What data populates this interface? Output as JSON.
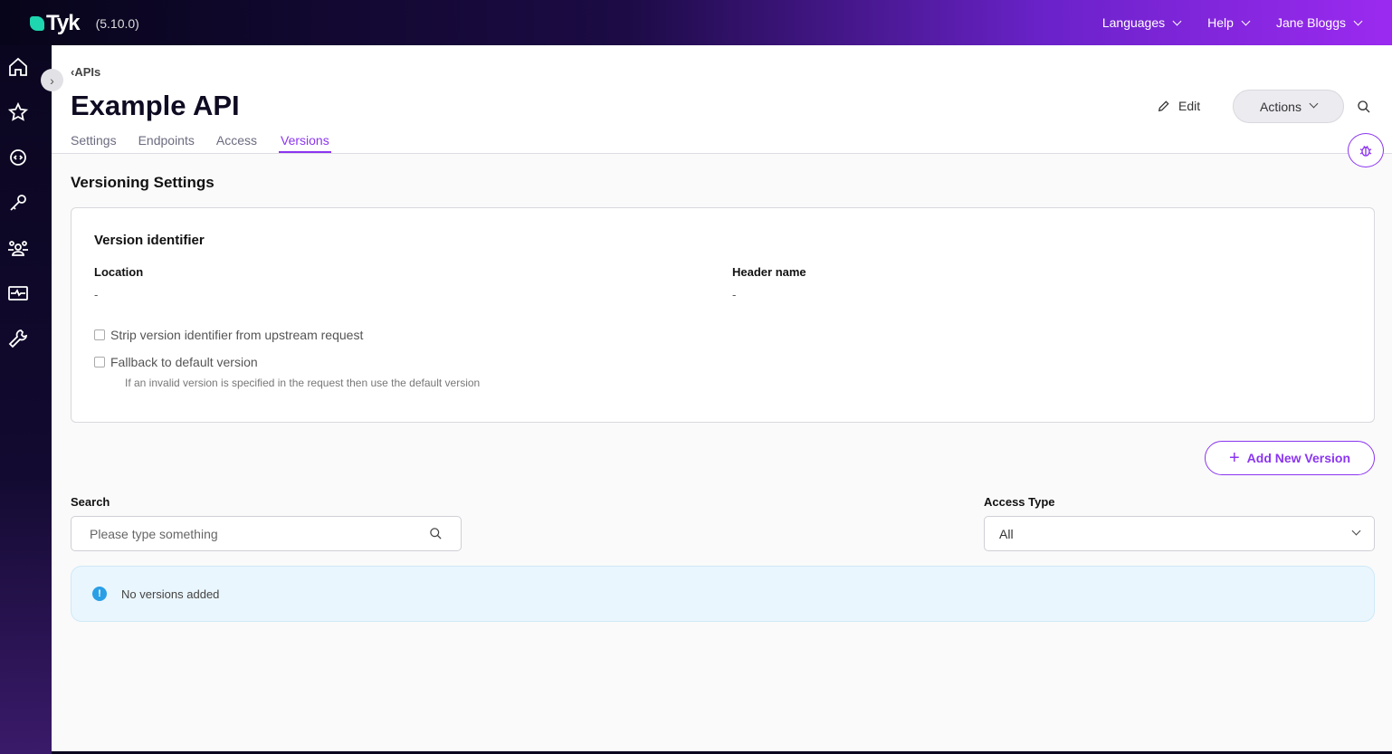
{
  "app": {
    "logo_text": "Tyk",
    "version": "(5.10.0)"
  },
  "topnav": {
    "languages": "Languages",
    "help": "Help",
    "user": "Jane Bloggs"
  },
  "sidebar": {
    "items": [
      "home-icon",
      "star-icon",
      "api-gear-icon",
      "key-icon",
      "users-icon",
      "monitor-icon",
      "wrench-icon"
    ]
  },
  "header": {
    "breadcrumb": "APIs",
    "title": "Example API",
    "edit": "Edit",
    "actions": "Actions",
    "tabs": [
      {
        "label": "Settings"
      },
      {
        "label": "Endpoints"
      },
      {
        "label": "Access"
      },
      {
        "label": "Versions",
        "active": true
      }
    ]
  },
  "versioning": {
    "title": "Versioning Settings",
    "card_title": "Version identifier",
    "location_label": "Location",
    "location_value": "-",
    "header_label": "Header name",
    "header_value": "-",
    "strip_label": "Strip version identifier from upstream request",
    "strip_checked": false,
    "fallback_label": "Fallback to default version",
    "fallback_checked": false,
    "fallback_hint": "If an invalid version is specified in the request then use the default version"
  },
  "add_version": "Add New Version",
  "filters": {
    "search_label": "Search",
    "search_placeholder": "Please type something",
    "access_label": "Access Type",
    "access_value": "All"
  },
  "empty_message": "No versions added",
  "colors": {
    "accent": "#8b35f0",
    "logo": "#1ed6b0",
    "info": "#2a9fe6"
  }
}
